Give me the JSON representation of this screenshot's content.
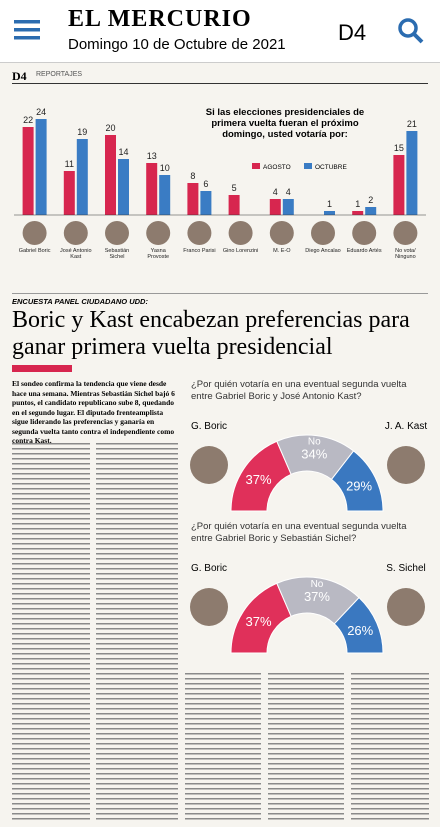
{
  "app_bar": {
    "title": "EL MERCURIO",
    "date": "Domingo 10 de Octubre de 2021",
    "page": "D4"
  },
  "page_header": {
    "page": "D4",
    "section": "REPORTAJES"
  },
  "chart_data": [
    {
      "type": "bar",
      "title": "Si las elecciones presidenciales de primera vuelta fueran el próximo domingo, usted votaría por:",
      "categories": [
        "Gabriel Boric",
        "José Antonio Kast",
        "Sebastián Sichel",
        "Yasna Provoste",
        "Franco Parisi",
        "Gino Lorenzini",
        "M. E-O",
        "Diego Ancalao",
        "Eduardo Artés",
        "No vota/ Ninguno"
      ],
      "series": [
        {
          "name": "AGOSTO",
          "color": "#d7264f",
          "values": [
            22,
            11,
            20,
            13,
            8,
            5,
            4,
            null,
            1,
            15
          ]
        },
        {
          "name": "OCTUBRE",
          "color": "#3a7cc4",
          "values": [
            24,
            19,
            14,
            10,
            6,
            null,
            4,
            1,
            2,
            21
          ]
        }
      ]
    },
    {
      "type": "semicircle",
      "title": "¿Por quién votaría en una eventual segunda vuelta entre Gabriel Boric y José Antonio Kast?",
      "categories": [
        "G. Boric",
        "No",
        "J. A. Kast"
      ],
      "values": [
        37,
        34,
        29
      ],
      "value_labels": [
        "37%",
        "34%",
        "29%"
      ],
      "colors": [
        "#e0305a",
        "#b9b9c3",
        "#3a78c0"
      ]
    },
    {
      "type": "semicircle",
      "title": "¿Por quién votaría en una eventual segunda vuelta entre Gabriel Boric y Sebastián Sichel?",
      "categories": [
        "G. Boric",
        "No",
        "S. Sichel"
      ],
      "values": [
        37,
        37,
        26
      ],
      "value_labels": [
        "37%",
        "37%",
        "26%"
      ],
      "colors": [
        "#e0305a",
        "#b9b9c3",
        "#3a78c0"
      ]
    }
  ],
  "article": {
    "kicker": "ENCUESTA PANEL CIUDADANO UDD:",
    "headline": "Boric y Kast encabezan preferencias para ganar primera vuelta presidencial",
    "lead": "El sondeo confirma la tendencia que viene desde hace una semana. Mientras Sebastián Sichel bajó 6 puntos, el candidato republicano sube 8, quedando en el segundo lugar. El diputado frenteamplista sigue liderando las preferencias y ganaría en segunda vuelta tanto contra el independiente como contra Kast."
  }
}
